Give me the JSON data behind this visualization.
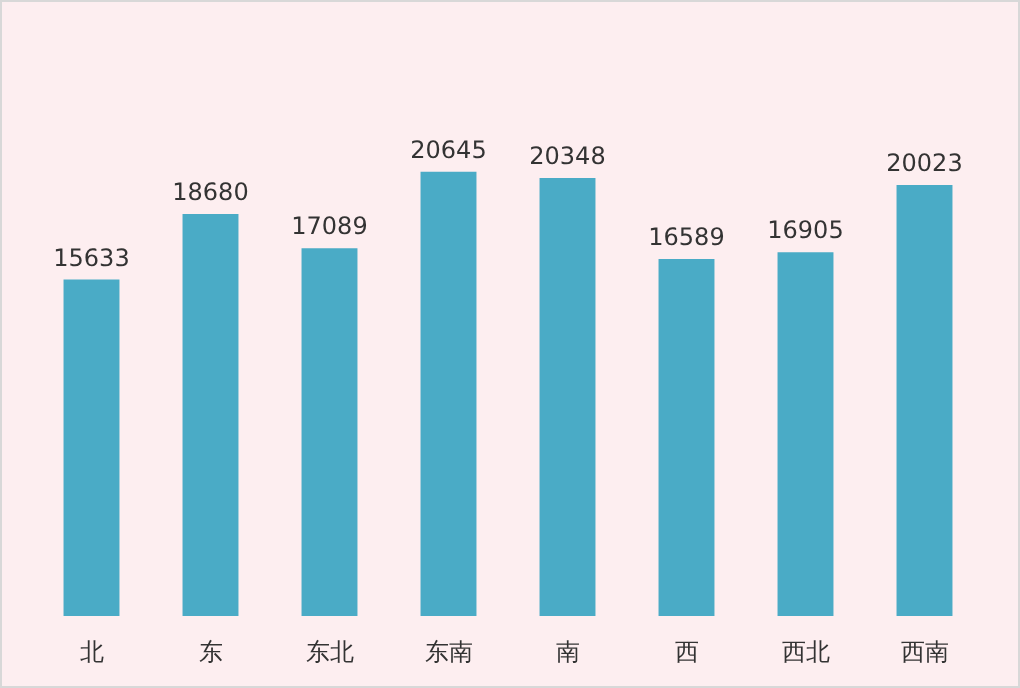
{
  "chart_data": {
    "type": "bar",
    "categories": [
      "北",
      "东",
      "东北",
      "东南",
      "南",
      "西",
      "西北",
      "西南"
    ],
    "values": [
      15633,
      18680,
      17089,
      20645,
      20348,
      16589,
      16905,
      20023
    ],
    "color": "#4aabc6",
    "data_labels": true
  }
}
